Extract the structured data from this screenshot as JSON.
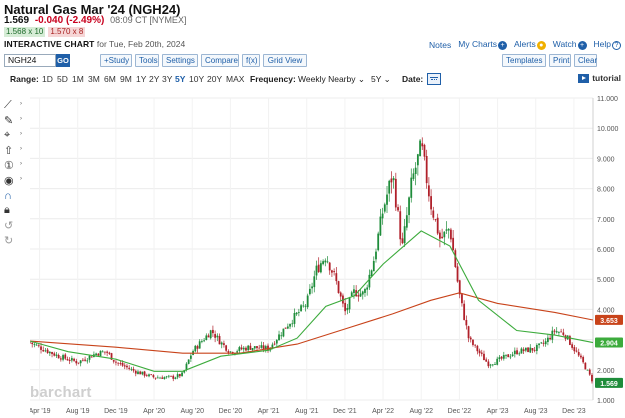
{
  "header": {
    "title": "Natural Gas Mar '24 (NGH24)",
    "last": "1.569",
    "change": "-0.040 (-2.49%)",
    "time": "08:09 CT [NYMEX]",
    "bid": "1.568 x 10",
    "ask": "1.570 x 8",
    "chart_title": "INTERACTIVE CHART",
    "chart_date": "for Tue, Feb 20th, 2024"
  },
  "links": {
    "notes": "Notes",
    "my_charts": "My Charts",
    "alerts": "Alerts",
    "watch": "Watch",
    "help": "Help"
  },
  "toolbar": {
    "symbol": "NGH24",
    "go": "GO",
    "study": "+Study",
    "tools": "Tools",
    "settings": "Settings",
    "compare": "Compare",
    "fx": "f(x)",
    "grid_view": "Grid View",
    "templates": "Templates",
    "print": "Print",
    "clear": "Clear"
  },
  "range_bar": {
    "range_label": "Range:",
    "ranges": [
      "1D",
      "5D",
      "1M",
      "3M",
      "6M",
      "9M",
      "1Y",
      "2Y",
      "3Y",
      "5Y",
      "10Y",
      "20Y",
      "MAX"
    ],
    "active_range": "5Y",
    "frequency_label": "Frequency:",
    "frequency": "Weekly Nearby",
    "period": "5Y",
    "date_label": "Date:",
    "tutorial": "tutorial"
  },
  "icons": [
    "line-tool-icon",
    "pen-icon",
    "crosshair-icon",
    "arrow-icon",
    "circle-tool-icon",
    "eye-icon",
    "magnet-icon",
    "lock-icon",
    "undo-icon",
    "redo-icon",
    "plus-icon",
    "bell-icon",
    "watch-icon",
    "help-icon",
    "calendar-icon",
    "tutorial-icon"
  ],
  "colors": {
    "up": "#1e8c3a",
    "down": "#b0202a",
    "ma_short": "#3cab3c",
    "ma_long": "#c8431a",
    "link": "#1f5fa8",
    "last_badge": "#1e8c3a"
  },
  "watermark": "barchart",
  "chart_data": {
    "type": "candlestick",
    "x_tick_labels": [
      "Apr '19",
      "Aug '19",
      "Dec '19",
      "Apr '20",
      "Aug '20",
      "Dec '20",
      "Apr '21",
      "Aug '21",
      "Dec '21",
      "Apr '22",
      "Aug '22",
      "Dec '22",
      "Apr '23",
      "Aug '23",
      "Dec '23"
    ],
    "y_tick_labels": [
      "1.000",
      "2.000",
      "3.000",
      "4.000",
      "5.000",
      "6.000",
      "7.000",
      "8.000",
      "9.000",
      "10.000",
      "11.000"
    ],
    "ylim": [
      1.0,
      11.0
    ],
    "x_range": [
      "2019-03",
      "2024-02"
    ],
    "price_close_path": [
      {
        "x": "2019-03",
        "y": 2.9
      },
      {
        "x": "2019-04",
        "y": 2.75
      },
      {
        "x": "2019-06",
        "y": 2.45
      },
      {
        "x": "2019-08",
        "y": 2.25
      },
      {
        "x": "2019-10",
        "y": 2.55
      },
      {
        "x": "2019-11",
        "y": 2.6
      },
      {
        "x": "2019-12",
        "y": 2.25
      },
      {
        "x": "2020-02",
        "y": 1.95
      },
      {
        "x": "2020-04",
        "y": 1.75
      },
      {
        "x": "2020-06",
        "y": 1.75
      },
      {
        "x": "2020-07",
        "y": 1.85
      },
      {
        "x": "2020-08",
        "y": 2.6
      },
      {
        "x": "2020-10",
        "y": 3.3
      },
      {
        "x": "2020-11",
        "y": 2.9
      },
      {
        "x": "2020-12",
        "y": 2.6
      },
      {
        "x": "2021-02",
        "y": 2.75
      },
      {
        "x": "2021-04",
        "y": 2.7
      },
      {
        "x": "2021-06",
        "y": 3.5
      },
      {
        "x": "2021-08",
        "y": 4.2
      },
      {
        "x": "2021-09",
        "y": 5.3
      },
      {
        "x": "2021-10",
        "y": 5.8
      },
      {
        "x": "2021-11",
        "y": 5.0
      },
      {
        "x": "2021-12",
        "y": 3.9
      },
      {
        "x": "2022-01",
        "y": 4.6
      },
      {
        "x": "2022-02",
        "y": 4.5
      },
      {
        "x": "2022-03",
        "y": 5.6
      },
      {
        "x": "2022-04",
        "y": 7.3
      },
      {
        "x": "2022-05",
        "y": 8.5
      },
      {
        "x": "2022-06",
        "y": 6.0
      },
      {
        "x": "2022-07",
        "y": 8.2
      },
      {
        "x": "2022-08",
        "y": 9.4
      },
      {
        "x": "2022-09",
        "y": 7.5
      },
      {
        "x": "2022-10",
        "y": 6.3
      },
      {
        "x": "2022-11",
        "y": 6.7
      },
      {
        "x": "2022-12",
        "y": 4.5
      },
      {
        "x": "2023-01",
        "y": 3.0
      },
      {
        "x": "2023-02",
        "y": 2.6
      },
      {
        "x": "2023-03",
        "y": 2.2
      },
      {
        "x": "2023-04",
        "y": 2.3
      },
      {
        "x": "2023-06",
        "y": 2.6
      },
      {
        "x": "2023-08",
        "y": 2.7
      },
      {
        "x": "2023-09",
        "y": 2.9
      },
      {
        "x": "2023-10",
        "y": 3.3
      },
      {
        "x": "2023-11",
        "y": 3.2
      },
      {
        "x": "2023-12",
        "y": 2.7
      },
      {
        "x": "2024-01",
        "y": 2.2
      },
      {
        "x": "2024-02",
        "y": 1.6
      }
    ],
    "ma_short": [
      {
        "x": "2019-03",
        "y": 2.95
      },
      {
        "x": "2019-07",
        "y": 2.6
      },
      {
        "x": "2019-12",
        "y": 2.35
      },
      {
        "x": "2020-04",
        "y": 1.95
      },
      {
        "x": "2020-07",
        "y": 1.95
      },
      {
        "x": "2020-11",
        "y": 2.45
      },
      {
        "x": "2021-04",
        "y": 2.65
      },
      {
        "x": "2021-07",
        "y": 3.05
      },
      {
        "x": "2021-10",
        "y": 4.1
      },
      {
        "x": "2022-01",
        "y": 4.45
      },
      {
        "x": "2022-04",
        "y": 5.5
      },
      {
        "x": "2022-08",
        "y": 6.6
      },
      {
        "x": "2022-11",
        "y": 6.1
      },
      {
        "x": "2023-02",
        "y": 4.3
      },
      {
        "x": "2023-06",
        "y": 3.3
      },
      {
        "x": "2023-10",
        "y": 3.15
      },
      {
        "x": "2024-02",
        "y": 2.9
      }
    ],
    "ma_long": [
      {
        "x": "2019-03",
        "y": 2.95
      },
      {
        "x": "2019-12",
        "y": 2.75
      },
      {
        "x": "2020-07",
        "y": 2.55
      },
      {
        "x": "2021-01",
        "y": 2.55
      },
      {
        "x": "2021-07",
        "y": 2.85
      },
      {
        "x": "2021-12",
        "y": 3.35
      },
      {
        "x": "2022-05",
        "y": 3.85
      },
      {
        "x": "2022-09",
        "y": 4.3
      },
      {
        "x": "2022-12",
        "y": 4.55
      },
      {
        "x": "2023-04",
        "y": 4.2
      },
      {
        "x": "2023-10",
        "y": 3.9
      },
      {
        "x": "2024-02",
        "y": 3.65
      }
    ],
    "value_badges": [
      {
        "label": "3.653",
        "value": 3.653,
        "color": "#c8431a"
      },
      {
        "label": "2.904",
        "value": 2.904,
        "color": "#3cab3c"
      },
      {
        "label": "1.569",
        "value": 1.569,
        "color": "#1e8c3a"
      }
    ]
  }
}
